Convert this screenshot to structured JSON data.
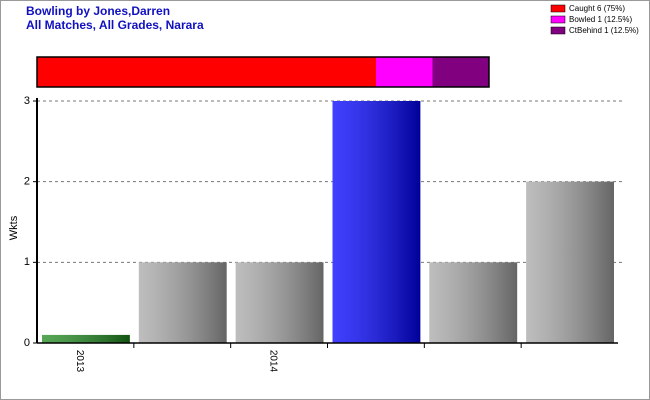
{
  "chart_data": [
    {
      "type": "bar",
      "title": "Bowling by Jones,Darren",
      "subtitle": "All Matches, All Grades, Narara",
      "y_label": "Wkts",
      "categories": [
        "2013",
        null,
        "2014",
        null,
        null,
        null
      ],
      "values": [
        0.1,
        1,
        1,
        3,
        1,
        2
      ],
      "colors": [
        "#1e8a1e",
        "#a8a8a8",
        "#a8a8a8",
        "#0000ff",
        "#a8a8a8",
        "#a8a8a8"
      ],
      "ylim": [
        0,
        3
      ],
      "yticks": [
        0,
        1,
        2,
        3
      ],
      "grid": true
    },
    {
      "type": "proportion",
      "legend": "top-right",
      "series": [
        {
          "name": "Caught 6 (75%)",
          "color": "#ff0000",
          "values": [
            75
          ]
        },
        {
          "name": "Bowled 1 (12.5%)",
          "color": "#ff00ff",
          "values": [
            12.5
          ]
        },
        {
          "name": "CtBehind 1 (12.5%)",
          "color": "#800080",
          "values": [
            12.5
          ]
        }
      ]
    }
  ]
}
